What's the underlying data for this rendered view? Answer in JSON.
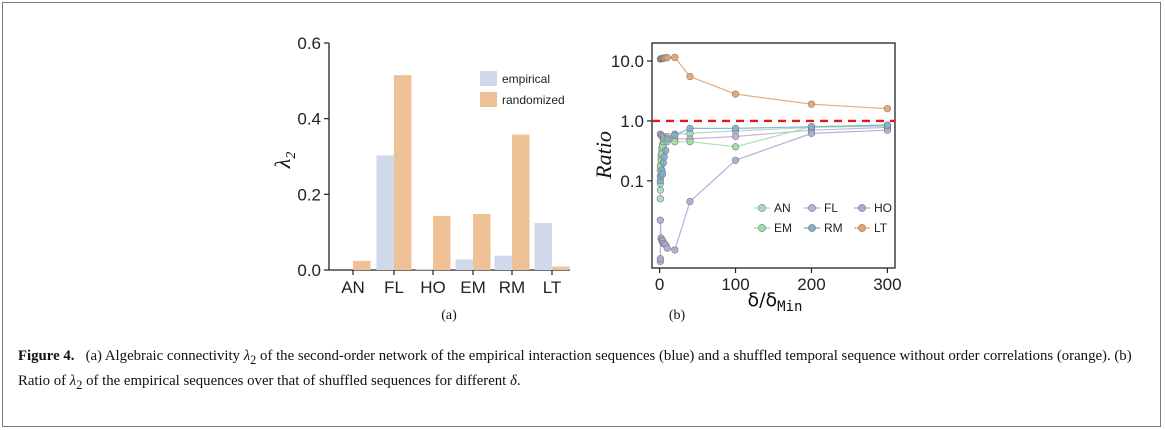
{
  "figure": {
    "caption_label": "Figure 4.",
    "caption_parts": {
      "p1": "(a) Algebraic connectivity ",
      "lambda": "λ",
      "lambda_sub": "2",
      "p2": " of the second-order network of the empirical interaction sequences (blue) and a shuffled temporal sequence without order correlations (orange). (b) Ratio of ",
      "p3": " of the empirical sequences over that of shuffled sequences for different ",
      "delta": "δ",
      "p4": "."
    },
    "panel_a_label": "(a)",
    "panel_b_label": "(b)"
  },
  "colors": {
    "empirical": "#cfd9ea",
    "randomized": "#efc197",
    "reference_line": "#e0191b",
    "AN": "#a8d9c5",
    "FL": "#c9a9dc",
    "HO": "#a9abd3",
    "EM": "#9edfa2",
    "RM": "#7faecd",
    "LT": "#e4a36e"
  },
  "chart_data": [
    {
      "type": "bar",
      "categories": [
        "AN",
        "FL",
        "HO",
        "EM",
        "RM",
        "LT"
      ],
      "series": [
        {
          "name": "empirical",
          "values": [
            0.0,
            0.303,
            0.003,
            0.028,
            0.038,
            0.124
          ]
        },
        {
          "name": "randomized",
          "values": [
            0.024,
            0.515,
            0.143,
            0.148,
            0.358,
            0.009
          ]
        }
      ],
      "ylabel": "λ2",
      "ylim": [
        0,
        0.6
      ],
      "yticks": [
        "0.0",
        "0.2",
        "0.4",
        "0.6"
      ],
      "legend": "top-right",
      "grid": false
    },
    {
      "type": "line",
      "xlabel": "δ/δMin",
      "ylabel": "Ratio",
      "yscale": "log",
      "xlim": [
        -10,
        310
      ],
      "ylim": [
        0.0035,
        20
      ],
      "xticks": [
        "0",
        "100",
        "200",
        "300"
      ],
      "yticks": [
        "0.1",
        "1.0",
        "10.0"
      ],
      "reference_line": 1.0,
      "legend": "bottom-right",
      "grid": false,
      "series": [
        {
          "name": "AN",
          "x": [
            1,
            1,
            1,
            1,
            1,
            2,
            2,
            2,
            3,
            3,
            4,
            5,
            6,
            8,
            10,
            20,
            40,
            100,
            200,
            300
          ],
          "y": [
            0.05,
            0.07,
            0.09,
            0.12,
            0.15,
            0.18,
            0.22,
            0.26,
            0.3,
            0.35,
            0.4,
            0.45,
            0.5,
            0.52,
            0.55,
            0.6,
            0.62,
            0.68,
            0.78,
            0.82
          ]
        },
        {
          "name": "FL",
          "x": [
            1,
            2,
            3,
            4,
            5,
            6,
            8,
            10,
            20,
            40,
            100,
            200,
            300
          ],
          "y": [
            0.6,
            0.58,
            0.55,
            0.55,
            0.52,
            0.5,
            0.5,
            0.5,
            0.5,
            0.5,
            0.55,
            0.7,
            0.78
          ]
        },
        {
          "name": "HO",
          "x": [
            1,
            1,
            1,
            2,
            3,
            4,
            5,
            6,
            8,
            10,
            20,
            40,
            100,
            200,
            300
          ],
          "y": [
            0.0045,
            0.005,
            0.022,
            0.011,
            0.01,
            0.01,
            0.009,
            0.009,
            0.0085,
            0.0075,
            0.007,
            0.045,
            0.22,
            0.62,
            0.7
          ]
        },
        {
          "name": "EM",
          "x": [
            1,
            2,
            3,
            4,
            5,
            6,
            8,
            10,
            20,
            40,
            100,
            200,
            300
          ],
          "y": [
            0.18,
            0.22,
            0.28,
            0.38,
            0.45,
            0.5,
            0.48,
            0.45,
            0.45,
            0.45,
            0.37,
            0.8,
            0.85
          ]
        },
        {
          "name": "RM",
          "x": [
            1,
            2,
            3,
            4,
            5,
            6,
            8,
            10,
            20,
            40,
            100,
            200,
            300
          ],
          "y": [
            0.1,
            0.12,
            0.15,
            0.13,
            0.2,
            0.25,
            0.32,
            0.5,
            0.58,
            0.75,
            0.75,
            0.8,
            0.85
          ]
        },
        {
          "name": "LT",
          "x": [
            1,
            2,
            3,
            4,
            5,
            6,
            8,
            10,
            20,
            40,
            100,
            200,
            300
          ],
          "y": [
            10.8,
            10.9,
            11.0,
            11.1,
            11.1,
            11.2,
            11.3,
            11.4,
            11.5,
            5.5,
            2.8,
            1.9,
            1.6
          ]
        }
      ]
    }
  ]
}
